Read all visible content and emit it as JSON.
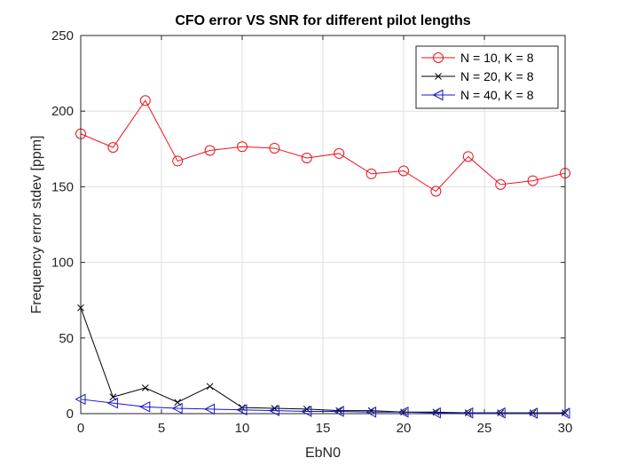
{
  "chart_data": {
    "type": "line",
    "title": "CFO error VS SNR for different pilot lengths",
    "xlabel": "EbN0",
    "ylabel": "Frequency error stdev [ppm]",
    "xlim": [
      0,
      30
    ],
    "ylim": [
      0,
      250
    ],
    "xticks": [
      0,
      5,
      10,
      15,
      20,
      25,
      30
    ],
    "yticks": [
      0,
      50,
      100,
      150,
      200,
      250
    ],
    "grid": true,
    "legend_position": "top-right",
    "x": [
      0,
      2,
      4,
      6,
      8,
      10,
      12,
      14,
      16,
      18,
      20,
      22,
      24,
      26,
      28,
      30
    ],
    "series": [
      {
        "name": "N = 10, K = 8",
        "color": "#e8131b",
        "marker": "circle",
        "values": [
          185,
          176,
          207,
          167,
          174,
          176.5,
          175.5,
          169,
          172,
          158.5,
          160.5,
          147,
          170,
          151.5,
          154,
          159
        ]
      },
      {
        "name": "N = 20, K = 8",
        "color": "#000000",
        "marker": "x",
        "values": [
          70,
          11,
          17,
          7.5,
          18,
          4,
          3.5,
          3,
          2,
          2,
          1,
          1,
          0.5,
          0.5,
          0.5,
          0.5
        ]
      },
      {
        "name": "N = 40, K = 8",
        "color": "#1414cc",
        "marker": "triangle-left",
        "values": [
          9.5,
          7,
          4.5,
          3.5,
          3,
          2.5,
          2,
          1.5,
          1.5,
          1,
          1,
          0.5,
          0.5,
          0.5,
          0.3,
          0.3
        ]
      }
    ]
  }
}
